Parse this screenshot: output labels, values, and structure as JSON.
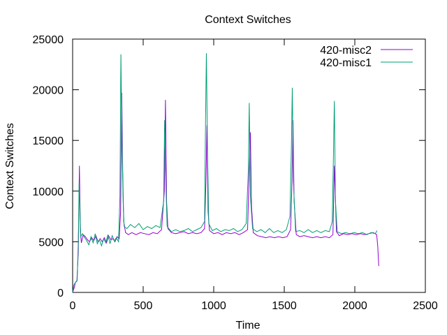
{
  "chart_data": {
    "type": "line",
    "title": "Context Switches",
    "xlabel": "Time",
    "ylabel": "Context Switches",
    "xlim": [
      0,
      2500
    ],
    "ylim": [
      0,
      25000
    ],
    "xticks": [
      0,
      500,
      1000,
      1500,
      2000,
      2500
    ],
    "yticks": [
      0,
      5000,
      10000,
      15000,
      20000,
      25000
    ],
    "legend_position": "top-right",
    "grid": false,
    "series": [
      {
        "name": "420-misc2",
        "color": "#9400d3",
        "points": [
          [
            0,
            0
          ],
          [
            10,
            400
          ],
          [
            20,
            1000
          ],
          [
            30,
            1100
          ],
          [
            40,
            4000
          ],
          [
            48,
            12500
          ],
          [
            55,
            6000
          ],
          [
            62,
            4900
          ],
          [
            75,
            5700
          ],
          [
            90,
            5500
          ],
          [
            105,
            5200
          ],
          [
            120,
            5000
          ],
          [
            135,
            5400
          ],
          [
            150,
            5100
          ],
          [
            165,
            5600
          ],
          [
            180,
            5000
          ],
          [
            195,
            5300
          ],
          [
            210,
            5000
          ],
          [
            225,
            5400
          ],
          [
            240,
            4900
          ],
          [
            255,
            5600
          ],
          [
            270,
            5200
          ],
          [
            285,
            5300
          ],
          [
            300,
            5000
          ],
          [
            315,
            5500
          ],
          [
            330,
            5300
          ],
          [
            340,
            8000
          ],
          [
            348,
            19700
          ],
          [
            355,
            12000
          ],
          [
            362,
            7000
          ],
          [
            375,
            5900
          ],
          [
            395,
            5700
          ],
          [
            420,
            5900
          ],
          [
            450,
            5700
          ],
          [
            480,
            5900
          ],
          [
            510,
            5800
          ],
          [
            540,
            5700
          ],
          [
            570,
            5900
          ],
          [
            600,
            5800
          ],
          [
            630,
            6200
          ],
          [
            650,
            10000
          ],
          [
            658,
            19000
          ],
          [
            666,
            9000
          ],
          [
            675,
            6300
          ],
          [
            700,
            5900
          ],
          [
            730,
            5800
          ],
          [
            760,
            5900
          ],
          [
            790,
            6000
          ],
          [
            820,
            5800
          ],
          [
            850,
            5900
          ],
          [
            880,
            5800
          ],
          [
            910,
            5900
          ],
          [
            935,
            6300
          ],
          [
            945,
            11000
          ],
          [
            952,
            16500
          ],
          [
            960,
            8000
          ],
          [
            970,
            6100
          ],
          [
            1000,
            5800
          ],
          [
            1030,
            5900
          ],
          [
            1060,
            5700
          ],
          [
            1090,
            5900
          ],
          [
            1120,
            5800
          ],
          [
            1150,
            5900
          ],
          [
            1180,
            5700
          ],
          [
            1210,
            5900
          ],
          [
            1240,
            6200
          ],
          [
            1252,
            12000
          ],
          [
            1260,
            15800
          ],
          [
            1268,
            8500
          ],
          [
            1280,
            5900
          ],
          [
            1310,
            5600
          ],
          [
            1340,
            5500
          ],
          [
            1370,
            5400
          ],
          [
            1400,
            5500
          ],
          [
            1430,
            5400
          ],
          [
            1460,
            5500
          ],
          [
            1490,
            5400
          ],
          [
            1520,
            5500
          ],
          [
            1545,
            6200
          ],
          [
            1555,
            11000
          ],
          [
            1562,
            17000
          ],
          [
            1570,
            9000
          ],
          [
            1585,
            5700
          ],
          [
            1610,
            5500
          ],
          [
            1640,
            5600
          ],
          [
            1670,
            5500
          ],
          [
            1700,
            5400
          ],
          [
            1730,
            5500
          ],
          [
            1760,
            5400
          ],
          [
            1790,
            5500
          ],
          [
            1820,
            5400
          ],
          [
            1845,
            5700
          ],
          [
            1855,
            12500
          ],
          [
            1862,
            9500
          ],
          [
            1870,
            6000
          ],
          [
            1890,
            5600
          ],
          [
            1920,
            5800
          ],
          [
            1950,
            5700
          ],
          [
            1980,
            5800
          ],
          [
            2010,
            5700
          ],
          [
            2040,
            5800
          ],
          [
            2070,
            5700
          ],
          [
            2100,
            5800
          ],
          [
            2130,
            5900
          ],
          [
            2155,
            5700
          ],
          [
            2163,
            4500
          ],
          [
            2170,
            2600
          ]
        ]
      },
      {
        "name": "420-misc1",
        "color": "#009e73",
        "points": [
          [
            0,
            0
          ],
          [
            8,
            700
          ],
          [
            20,
            1000
          ],
          [
            32,
            1200
          ],
          [
            40,
            5000
          ],
          [
            46,
            10800
          ],
          [
            52,
            8000
          ],
          [
            58,
            5500
          ],
          [
            70,
            5800
          ],
          [
            85,
            5400
          ],
          [
            100,
            5100
          ],
          [
            115,
            4700
          ],
          [
            130,
            5500
          ],
          [
            145,
            4900
          ],
          [
            160,
            5800
          ],
          [
            175,
            4800
          ],
          [
            190,
            5200
          ],
          [
            205,
            4600
          ],
          [
            220,
            5300
          ],
          [
            235,
            4900
          ],
          [
            250,
            5700
          ],
          [
            265,
            4800
          ],
          [
            280,
            5600
          ],
          [
            295,
            5100
          ],
          [
            310,
            5400
          ],
          [
            325,
            5000
          ],
          [
            335,
            9500
          ],
          [
            342,
            23500
          ],
          [
            350,
            14500
          ],
          [
            358,
            9000
          ],
          [
            365,
            6500
          ],
          [
            385,
            6300
          ],
          [
            410,
            6700
          ],
          [
            440,
            6400
          ],
          [
            470,
            6800
          ],
          [
            500,
            6200
          ],
          [
            530,
            6500
          ],
          [
            560,
            6300
          ],
          [
            590,
            6600
          ],
          [
            620,
            6400
          ],
          [
            645,
            9000
          ],
          [
            652,
            17000
          ],
          [
            660,
            11000
          ],
          [
            670,
            6500
          ],
          [
            700,
            6000
          ],
          [
            730,
            6200
          ],
          [
            760,
            6000
          ],
          [
            790,
            6100
          ],
          [
            820,
            6300
          ],
          [
            850,
            6000
          ],
          [
            880,
            6200
          ],
          [
            910,
            6400
          ],
          [
            935,
            7000
          ],
          [
            942,
            17000
          ],
          [
            948,
            23600
          ],
          [
            956,
            14000
          ],
          [
            965,
            6800
          ],
          [
            990,
            6100
          ],
          [
            1020,
            6300
          ],
          [
            1050,
            6000
          ],
          [
            1080,
            6200
          ],
          [
            1110,
            6100
          ],
          [
            1140,
            6300
          ],
          [
            1170,
            6000
          ],
          [
            1200,
            6200
          ],
          [
            1230,
            6800
          ],
          [
            1245,
            12000
          ],
          [
            1252,
            18700
          ],
          [
            1260,
            9500
          ],
          [
            1275,
            6300
          ],
          [
            1305,
            6000
          ],
          [
            1335,
            6200
          ],
          [
            1365,
            5900
          ],
          [
            1395,
            6300
          ],
          [
            1425,
            5900
          ],
          [
            1455,
            6100
          ],
          [
            1485,
            5900
          ],
          [
            1515,
            6200
          ],
          [
            1540,
            7500
          ],
          [
            1550,
            14000
          ],
          [
            1557,
            20200
          ],
          [
            1565,
            11000
          ],
          [
            1580,
            6000
          ],
          [
            1610,
            6100
          ],
          [
            1640,
            5900
          ],
          [
            1670,
            6200
          ],
          [
            1700,
            5900
          ],
          [
            1730,
            6100
          ],
          [
            1760,
            5900
          ],
          [
            1790,
            6100
          ],
          [
            1820,
            6000
          ],
          [
            1840,
            7000
          ],
          [
            1848,
            13000
          ],
          [
            1855,
            18900
          ],
          [
            1863,
            9000
          ],
          [
            1875,
            6000
          ],
          [
            1905,
            5800
          ],
          [
            1935,
            5900
          ],
          [
            1965,
            5800
          ],
          [
            1995,
            5900
          ],
          [
            2025,
            5800
          ],
          [
            2055,
            5900
          ],
          [
            2085,
            5700
          ],
          [
            2115,
            5900
          ],
          [
            2145,
            5800
          ],
          [
            2158,
            6100
          ]
        ]
      }
    ]
  }
}
